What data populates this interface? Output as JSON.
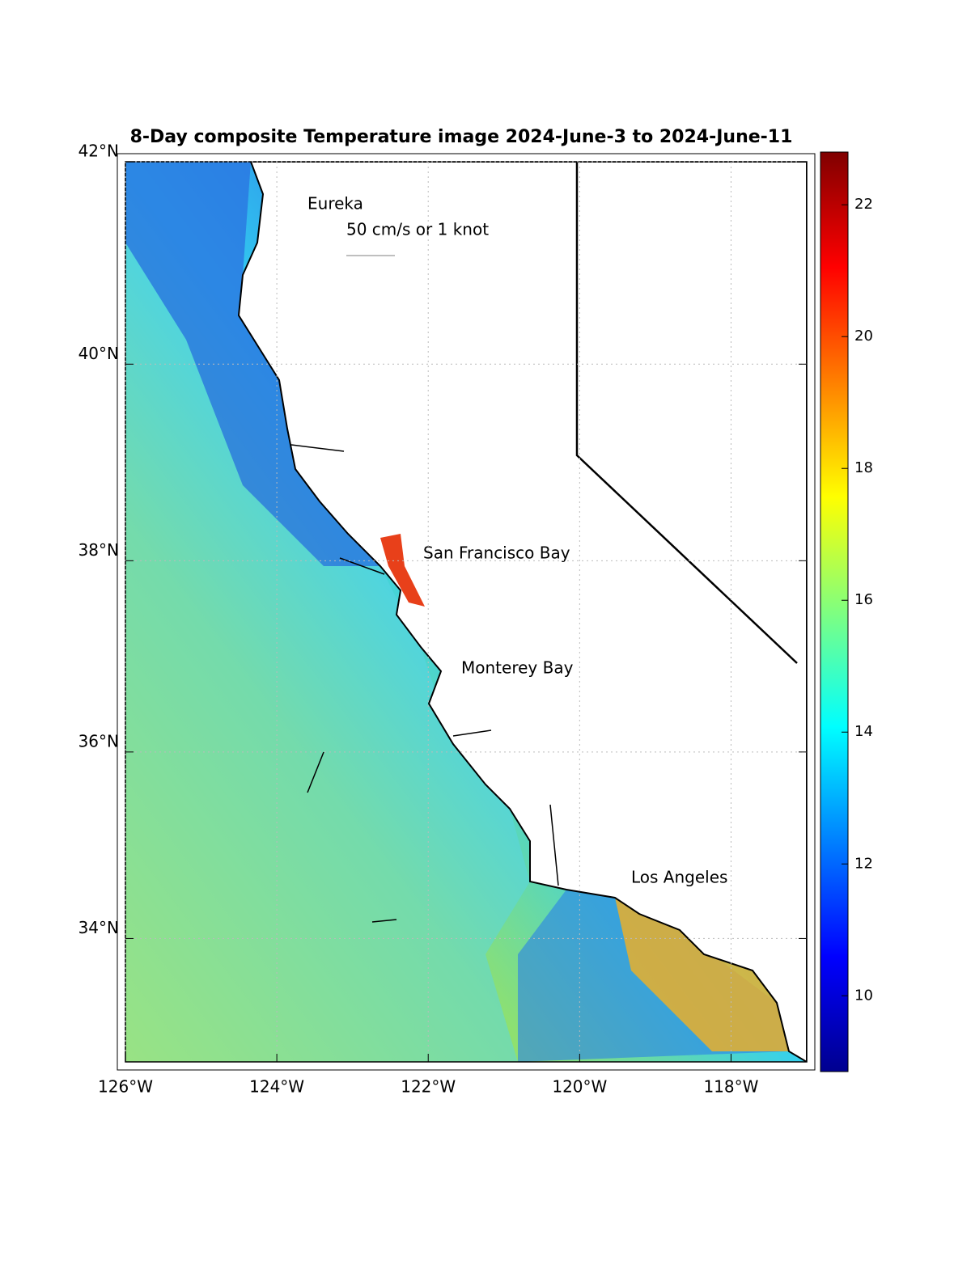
{
  "title": "8-Day composite Temperature image 2024-June-3 to 2024-June-11",
  "map": {
    "xlim": [
      -126,
      -117
    ],
    "ylim": [
      32.65,
      42
    ],
    "xticks": [
      {
        "value": -126,
        "label": "126°W"
      },
      {
        "value": -124,
        "label": "124°W"
      },
      {
        "value": -122,
        "label": "122°W"
      },
      {
        "value": -120,
        "label": "120°W"
      },
      {
        "value": -118,
        "label": "118°W"
      }
    ],
    "yticks": [
      {
        "value": 34,
        "label": "34°N"
      },
      {
        "value": 36,
        "label": "36°N"
      },
      {
        "value": 38,
        "label": "38°N"
      },
      {
        "value": 40,
        "label": "40°N"
      },
      {
        "value": 42,
        "label": "42°N"
      }
    ],
    "grid": true,
    "places": [
      "Eureka",
      "San Francisco Bay",
      "Monterey Bay",
      "Los Angeles"
    ],
    "scale_label": "50 cm/s or 1 knot"
  },
  "colorbar": {
    "colormap": "jet",
    "clim": [
      8.85,
      22.8
    ],
    "ticks": [
      10,
      12,
      14,
      16,
      18,
      20,
      22
    ]
  }
}
